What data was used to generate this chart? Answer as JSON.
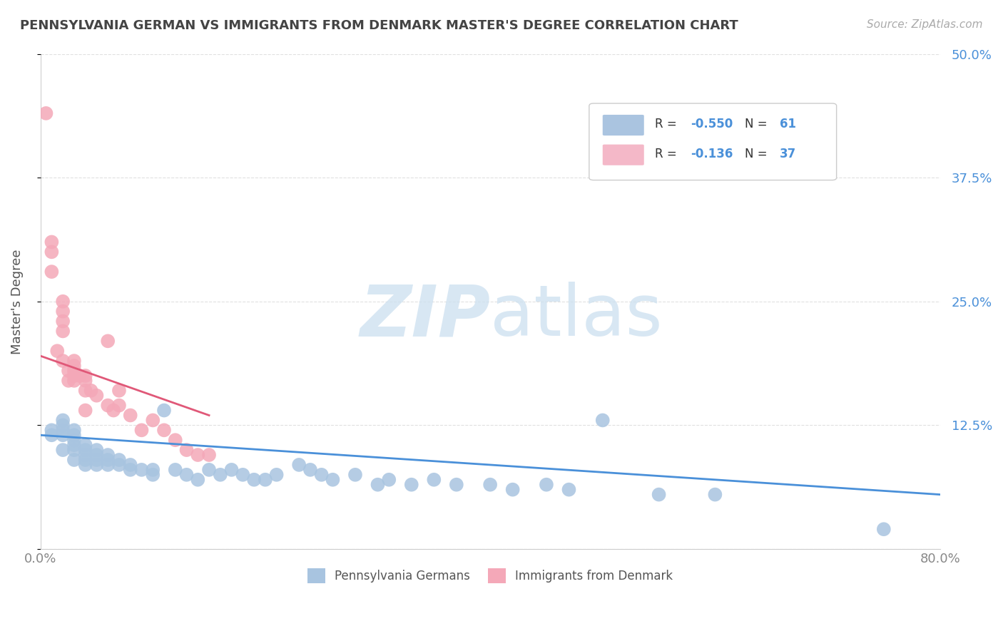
{
  "title": "PENNSYLVANIA GERMAN VS IMMIGRANTS FROM DENMARK MASTER'S DEGREE CORRELATION CHART",
  "source_text": "Source: ZipAtlas.com",
  "ylabel": "Master's Degree",
  "xlim": [
    0.0,
    0.8
  ],
  "ylim": [
    0.0,
    0.5
  ],
  "xticks": [
    0.0,
    0.2,
    0.4,
    0.6,
    0.8
  ],
  "yticks": [
    0.0,
    0.125,
    0.25,
    0.375,
    0.5
  ],
  "blue_R": "-0.550",
  "blue_N": "61",
  "pink_R": "-0.136",
  "pink_N": "37",
  "blue_color": "#a8c4e0",
  "pink_color": "#f4a8b8",
  "blue_line_color": "#4a90d9",
  "pink_line_color": "#e05878",
  "grid_color": "#e0e0e0",
  "blue_scatter_x": [
    0.01,
    0.01,
    0.02,
    0.02,
    0.02,
    0.02,
    0.02,
    0.03,
    0.03,
    0.03,
    0.03,
    0.03,
    0.03,
    0.04,
    0.04,
    0.04,
    0.04,
    0.04,
    0.05,
    0.05,
    0.05,
    0.05,
    0.06,
    0.06,
    0.06,
    0.07,
    0.07,
    0.08,
    0.08,
    0.09,
    0.1,
    0.1,
    0.11,
    0.12,
    0.13,
    0.14,
    0.15,
    0.16,
    0.17,
    0.18,
    0.19,
    0.2,
    0.21,
    0.23,
    0.24,
    0.25,
    0.26,
    0.28,
    0.3,
    0.31,
    0.33,
    0.35,
    0.37,
    0.4,
    0.42,
    0.45,
    0.47,
    0.5,
    0.55,
    0.6,
    0.75
  ],
  "blue_scatter_y": [
    0.115,
    0.12,
    0.1,
    0.115,
    0.12,
    0.125,
    0.13,
    0.09,
    0.1,
    0.105,
    0.11,
    0.115,
    0.12,
    0.085,
    0.09,
    0.095,
    0.1,
    0.105,
    0.085,
    0.09,
    0.095,
    0.1,
    0.085,
    0.09,
    0.095,
    0.085,
    0.09,
    0.08,
    0.085,
    0.08,
    0.075,
    0.08,
    0.14,
    0.08,
    0.075,
    0.07,
    0.08,
    0.075,
    0.08,
    0.075,
    0.07,
    0.07,
    0.075,
    0.085,
    0.08,
    0.075,
    0.07,
    0.075,
    0.065,
    0.07,
    0.065,
    0.07,
    0.065,
    0.065,
    0.06,
    0.065,
    0.06,
    0.13,
    0.055,
    0.055,
    0.02
  ],
  "pink_scatter_x": [
    0.005,
    0.01,
    0.01,
    0.01,
    0.015,
    0.02,
    0.02,
    0.02,
    0.02,
    0.02,
    0.025,
    0.025,
    0.03,
    0.03,
    0.03,
    0.03,
    0.03,
    0.035,
    0.04,
    0.04,
    0.04,
    0.04,
    0.045,
    0.05,
    0.06,
    0.06,
    0.065,
    0.07,
    0.07,
    0.08,
    0.09,
    0.1,
    0.11,
    0.12,
    0.13,
    0.14,
    0.15
  ],
  "pink_scatter_y": [
    0.44,
    0.28,
    0.3,
    0.31,
    0.2,
    0.22,
    0.23,
    0.24,
    0.25,
    0.19,
    0.17,
    0.18,
    0.17,
    0.18,
    0.185,
    0.19,
    0.175,
    0.175,
    0.16,
    0.17,
    0.175,
    0.14,
    0.16,
    0.155,
    0.21,
    0.145,
    0.14,
    0.16,
    0.145,
    0.135,
    0.12,
    0.13,
    0.12,
    0.11,
    0.1,
    0.095,
    0.095
  ],
  "blue_trend_x": [
    0.0,
    0.8
  ],
  "blue_trend_y": [
    0.115,
    0.055
  ],
  "pink_trend_x": [
    0.0,
    0.15
  ],
  "pink_trend_y": [
    0.195,
    0.135
  ],
  "legend_box_color": "#aac4e0",
  "legend_box_pink": "#f4b8c8",
  "title_color": "#444444",
  "axis_label_color": "#555555",
  "tick_label_color_right": "#4a90d9",
  "tick_label_color_bottom": "#888888",
  "legend_R_color": "#333333",
  "legend_N_color": "#4a90d9"
}
